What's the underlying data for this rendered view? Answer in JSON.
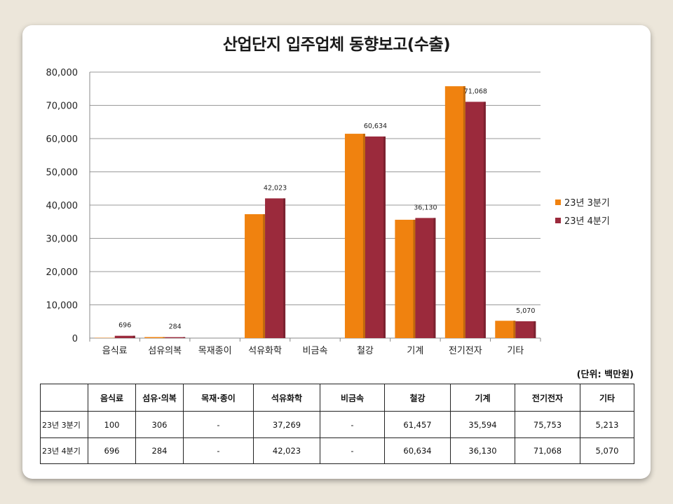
{
  "chart_data": {
    "type": "bar",
    "title": "산업단지 입주업체 동향보고(수출)",
    "unit_note": "(단위: 백만원)",
    "categories": [
      "음식료",
      "섬유의복",
      "목재종이",
      "석유화학",
      "비금속",
      "철강",
      "기계",
      "전기전자",
      "기타"
    ],
    "series": [
      {
        "name": "23년 3분기",
        "color": "#f0820f",
        "values": [
          100,
          306,
          0,
          37269,
          0,
          61457,
          35594,
          75753,
          5213
        ]
      },
      {
        "name": "23년 4분기",
        "color": "#9b2a3c",
        "values": [
          696,
          284,
          0,
          42023,
          0,
          60634,
          36130,
          71068,
          5070
        ]
      }
    ],
    "data_labels": {
      "series_index": 1,
      "labels": [
        "696",
        "284",
        "",
        "42,023",
        "",
        "60,634",
        "36,130",
        "71,068",
        "5,070"
      ]
    },
    "yticks": [
      "0",
      "10,000",
      "20,000",
      "30,000",
      "40,000",
      "50,000",
      "60,000",
      "70,000",
      "80,000"
    ],
    "ylim": [
      0,
      80000
    ],
    "grid": true,
    "legend_position": "right",
    "table": {
      "headers": [
        "",
        "음식료",
        "섬유·의복",
        "목재·종이",
        "석유화학",
        "비금속",
        "철강",
        "기계",
        "전기전자",
        "기타"
      ],
      "rows": [
        [
          "23년 3분기",
          "100",
          "306",
          "-",
          "37,269",
          "-",
          "61,457",
          "35,594",
          "75,753",
          "5,213"
        ],
        [
          "23년 4분기",
          "696",
          "284",
          "-",
          "42,023",
          "-",
          "60,634",
          "36,130",
          "71,068",
          "5,070"
        ]
      ]
    }
  }
}
